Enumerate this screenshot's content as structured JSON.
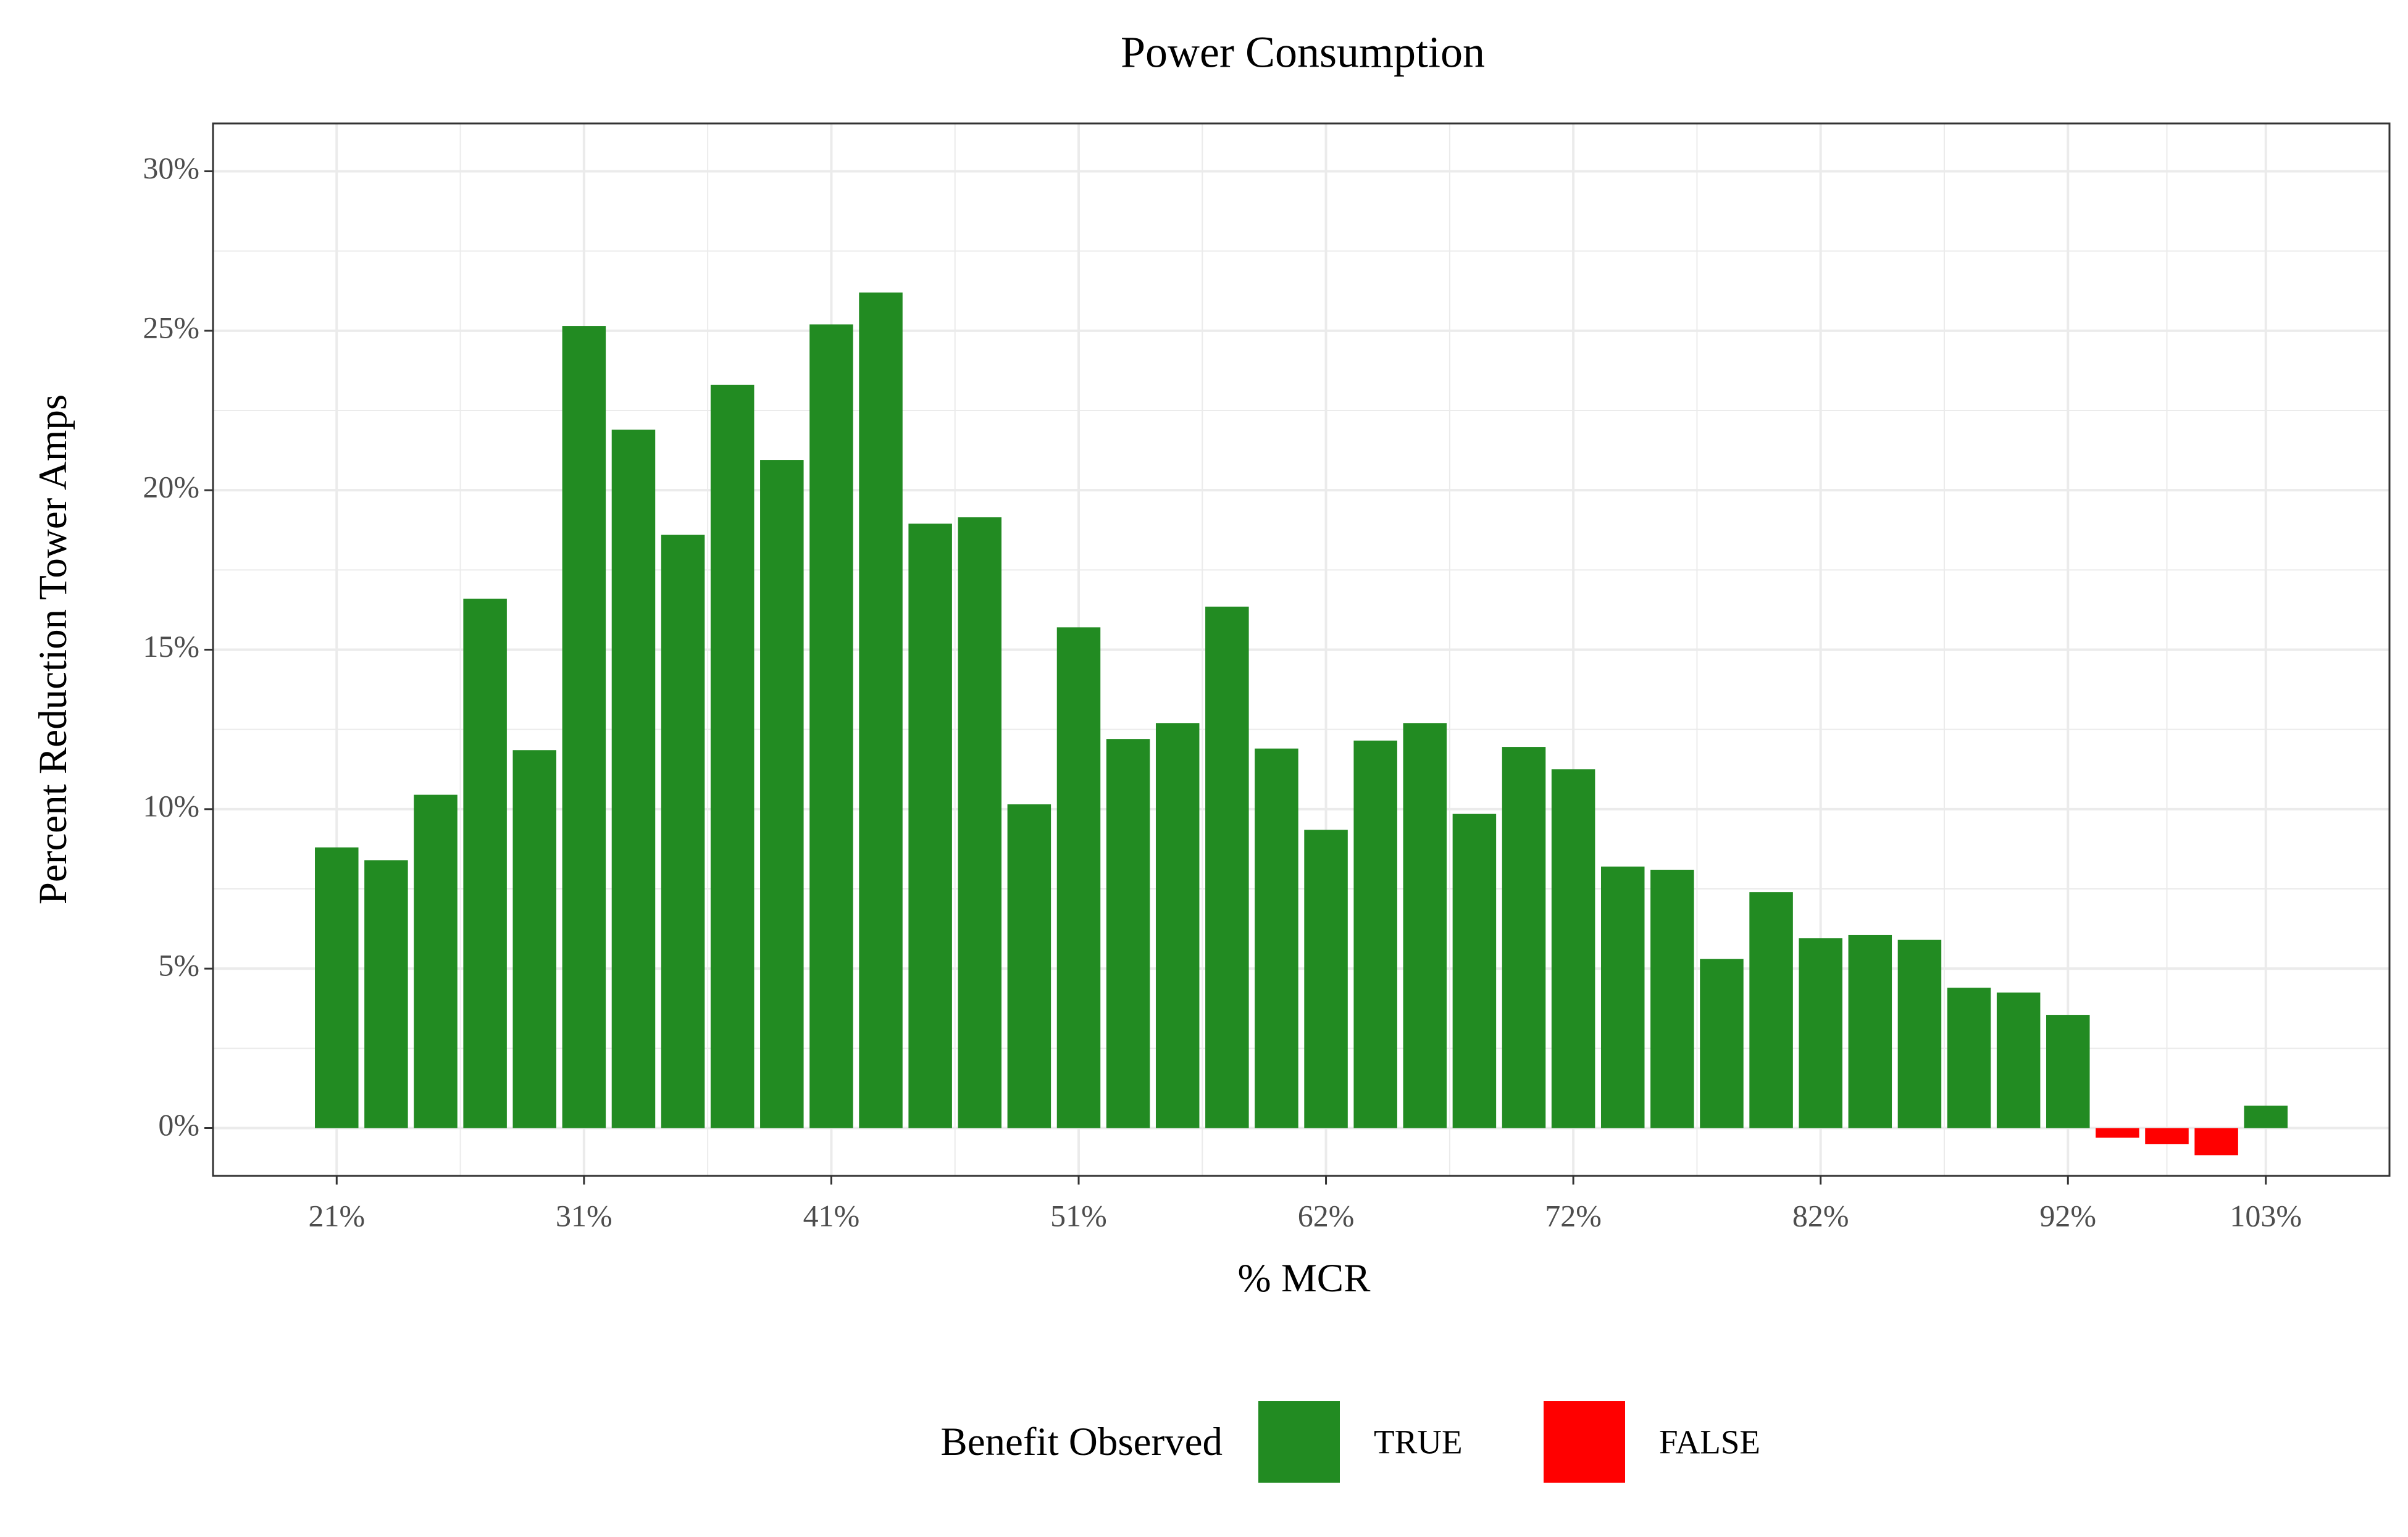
{
  "chart_data": {
    "type": "bar",
    "title": "Power Consumption",
    "x_label": "% MCR",
    "y_label": "Percent Reduction Tower Amps",
    "categories": [
      "21%",
      null,
      null,
      null,
      null,
      "31%",
      null,
      null,
      null,
      null,
      "41%",
      null,
      null,
      null,
      null,
      "51%",
      null,
      null,
      null,
      null,
      "62%",
      null,
      null,
      null,
      null,
      "72%",
      null,
      null,
      null,
      null,
      "82%",
      null,
      null,
      null,
      null,
      "92%",
      null,
      null,
      null,
      "103%"
    ],
    "legend_title": "Benefit Observed",
    "series": [
      {
        "name": "TRUE",
        "color": "#228b22",
        "values": [
          8.8,
          8.4,
          10.45,
          16.6,
          11.85,
          25.15,
          21.9,
          18.6,
          23.3,
          20.95,
          25.2,
          26.2,
          18.95,
          19.15,
          10.15,
          15.7,
          12.2,
          12.7,
          16.35,
          11.9,
          9.35,
          12.15,
          12.7,
          9.85,
          11.95,
          11.25,
          8.2,
          8.1,
          5.3,
          7.4,
          5.95,
          6.05,
          5.9,
          4.4,
          4.25,
          3.55,
          null,
          null,
          null,
          0.7
        ]
      },
      {
        "name": "FALSE",
        "color": "#ff0000",
        "values": [
          null,
          null,
          null,
          null,
          null,
          null,
          null,
          null,
          null,
          null,
          null,
          null,
          null,
          null,
          null,
          null,
          null,
          null,
          null,
          null,
          null,
          null,
          null,
          null,
          null,
          null,
          null,
          null,
          null,
          null,
          null,
          null,
          null,
          null,
          null,
          null,
          -0.3,
          -0.5,
          -0.85,
          null
        ]
      }
    ],
    "ylim": [
      -1.5,
      31.5
    ],
    "yticks": [
      {
        "value": 0,
        "label": "0%"
      },
      {
        "value": 5,
        "label": "5%"
      },
      {
        "value": 10,
        "label": "10%"
      },
      {
        "value": 15,
        "label": "15%"
      },
      {
        "value": 20,
        "label": "20%"
      },
      {
        "value": 25,
        "label": "25%"
      },
      {
        "value": 30,
        "label": "30%"
      }
    ],
    "grid": true,
    "legend_position": "bottom"
  }
}
